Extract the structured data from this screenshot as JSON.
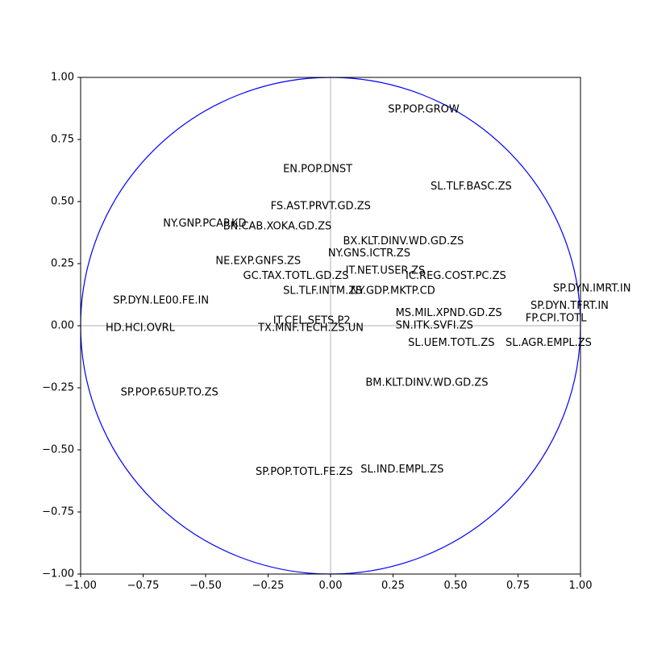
{
  "chart_data": {
    "type": "scatter",
    "title": "",
    "xlabel": "",
    "ylabel": "",
    "xlim": [
      -1.0,
      1.0
    ],
    "ylim": [
      -1.0,
      1.0
    ],
    "grid": false,
    "legend": "none",
    "x_ticks": [
      "−1.00",
      "−0.75",
      "−0.50",
      "−0.25",
      "0.00",
      "0.25",
      "0.50",
      "0.75",
      "1.00"
    ],
    "y_ticks": [
      "−1.00",
      "−0.75",
      "−0.50",
      "−0.25",
      "0.00",
      "0.25",
      "0.50",
      "0.75",
      "1.00"
    ],
    "circle_color": "#0000ff",
    "crosshair_color": "#bfbfbf",
    "points": [
      {
        "label": "SP.POP.GROW",
        "x": 0.23,
        "y": 0.87
      },
      {
        "label": "EN.POP.DNST",
        "x": -0.19,
        "y": 0.63
      },
      {
        "label": "SL.TLF.BASC.ZS",
        "x": 0.4,
        "y": 0.56
      },
      {
        "label": "FS.AST.PRVT.GD.ZS",
        "x": -0.24,
        "y": 0.48
      },
      {
        "label": "NY.GNP.PCAP.KD",
        "x": -0.67,
        "y": 0.41
      },
      {
        "label": "BN.CAB.XOKA.GD.ZS",
        "x": -0.43,
        "y": 0.4
      },
      {
        "label": "BX.KLT.DINV.WD.GD.ZS",
        "x": 0.05,
        "y": 0.34
      },
      {
        "label": "NY.GNS.ICTR.ZS",
        "x": -0.01,
        "y": 0.29
      },
      {
        "label": "NE.EXP.GNFS.ZS",
        "x": -0.46,
        "y": 0.26
      },
      {
        "label": "IT.NET.USER.ZS",
        "x": 0.06,
        "y": 0.22
      },
      {
        "label": "IC.REG.COST.PC.ZS",
        "x": 0.3,
        "y": 0.2
      },
      {
        "label": "GC.TAX.TOTL.GD.ZS",
        "x": -0.35,
        "y": 0.2
      },
      {
        "label": "SL.TLF.INTM.ZS",
        "x": -0.19,
        "y": 0.14
      },
      {
        "label": "NY.GDP.MKTP.CD",
        "x": 0.08,
        "y": 0.14
      },
      {
        "label": "SP.DYN.IMRT.IN",
        "x": 0.89,
        "y": 0.15
      },
      {
        "label": "SP.DYN.LE00.FE.IN",
        "x": -0.87,
        "y": 0.1
      },
      {
        "label": "SP.DYN.TFRT.IN",
        "x": 0.8,
        "y": 0.08
      },
      {
        "label": "MS.MIL.XPND.GD.ZS",
        "x": 0.26,
        "y": 0.05
      },
      {
        "label": "FP.CPI.TOTL",
        "x": 0.78,
        "y": 0.03
      },
      {
        "label": "IT.CEL.SETS.P2",
        "x": -0.23,
        "y": 0.02
      },
      {
        "label": "SN.ITK.SVFI.ZS",
        "x": 0.26,
        "y": 0.0
      },
      {
        "label": "TX.MNF.TECH.ZS.UN",
        "x": -0.29,
        "y": -0.01
      },
      {
        "label": "HD.HCI.OVRL",
        "x": -0.9,
        "y": -0.01
      },
      {
        "label": "SL.UEM.TOTL.ZS",
        "x": 0.31,
        "y": -0.07
      },
      {
        "label": "SL.AGR.EMPL.ZS",
        "x": 0.7,
        "y": -0.07
      },
      {
        "label": "BM.KLT.DINV.WD.GD.ZS",
        "x": 0.14,
        "y": -0.23
      },
      {
        "label": "SP.POP.65UP.TO.ZS",
        "x": -0.84,
        "y": -0.27
      },
      {
        "label": "SL.IND.EMPL.ZS",
        "x": 0.12,
        "y": -0.58
      },
      {
        "label": "SP.POP.TOTL.FE.ZS",
        "x": -0.3,
        "y": -0.59
      }
    ]
  }
}
